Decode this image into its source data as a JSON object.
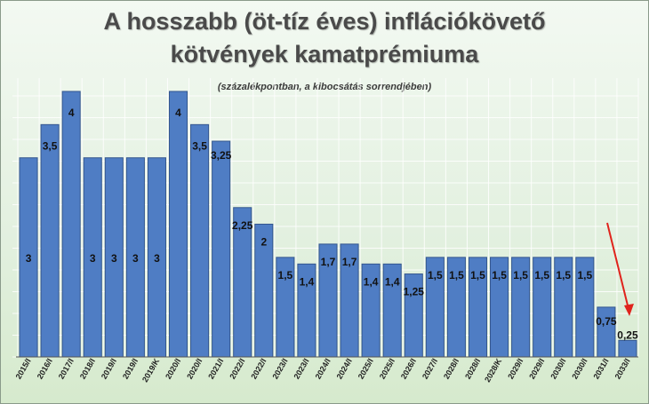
{
  "chart_data": {
    "type": "bar",
    "title_line1": "A hosszabb (öt-tíz éves) inflációkövető",
    "title_line2": "kötvények kamatprémiuma",
    "subtitle": "(százalékpontban,  a kibocsátás sorrendjében)",
    "categories": [
      "2015/I",
      "2016/I",
      "2017/I",
      "2018/I",
      "2019/I",
      "2019/I",
      "2019/K",
      "2020/I",
      "2020/I",
      "2021/I",
      "2022/I",
      "2022/I",
      "2023/I",
      "2023/I",
      "2024/I",
      "2024/I",
      "2025/I",
      "2025/I",
      "2026/I",
      "2027/I",
      "2028/I",
      "2028/I",
      "2028/K",
      "2029/I",
      "2029/I",
      "2030/I",
      "2030/I",
      "2031/I",
      "2033/I"
    ],
    "values": [
      3,
      3.5,
      4,
      3,
      3,
      3,
      3,
      4,
      3.5,
      3.25,
      2.25,
      2,
      1.5,
      1.4,
      1.7,
      1.7,
      1.4,
      1.4,
      1.25,
      1.5,
      1.5,
      1.5,
      1.5,
      1.5,
      1.5,
      1.5,
      1.5,
      0.75,
      0.25
    ],
    "value_labels": [
      "3",
      "3,5",
      "4",
      "3",
      "3",
      "3",
      "3",
      "4",
      "3,5",
      "3,25",
      "2,25",
      "2",
      "1,5",
      "1,4",
      "1,7",
      "1,7",
      "1,4",
      "1,4",
      "1,25",
      "1,5",
      "1,5",
      "1,5",
      "1,5",
      "1,5",
      "1,5",
      "1,5",
      "1,5",
      "0,75",
      "0,25"
    ],
    "ylim": [
      0,
      4.2
    ],
    "grid": true,
    "legend": "none",
    "colors": {
      "bar": "#4f7dc4",
      "arrow": "#e0231c",
      "title": "#4a4a4a"
    },
    "annotation": "red-arrow-down"
  }
}
